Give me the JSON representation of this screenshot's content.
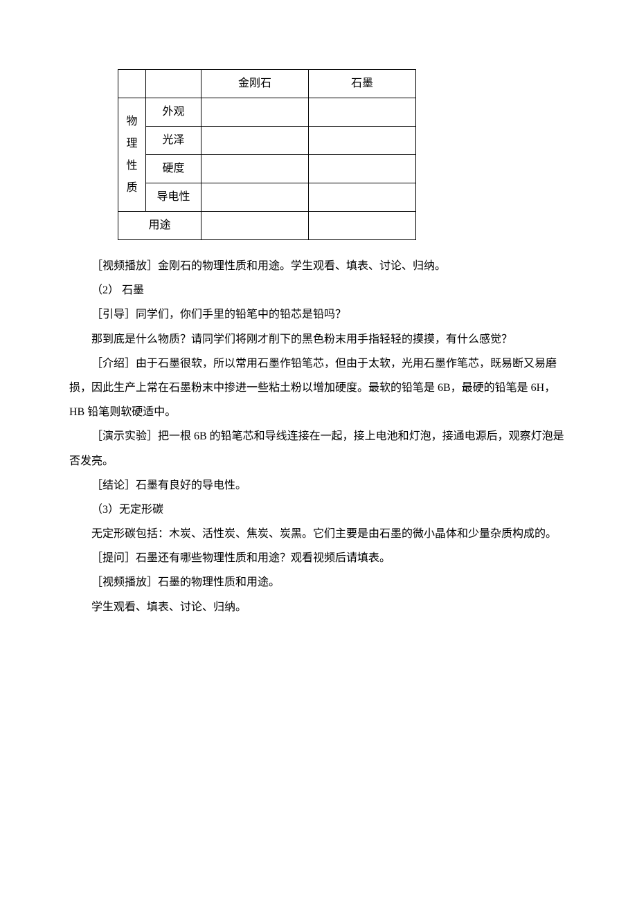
{
  "table": {
    "headers": {
      "diamond": "金刚石",
      "graphite": "石墨"
    },
    "rowGroup": "物理性质",
    "rows": {
      "appearance": "外观",
      "luster": "光泽",
      "hardness": "硬度",
      "conductivity": "导电性"
    },
    "use": "用途"
  },
  "paragraphs": {
    "p1": "［视频播放］金刚石的物理性质和用途。学生观看、填表、讨论、归纳。",
    "p2": "（2） 石墨",
    "p3": "［引导］同学们，你们手里的铅笔中的铅芯是铅吗？",
    "p4": "那到底是什么物质？请同学们将刚才削下的黑色粉末用手指轻轻的摸摸，有什么感觉？",
    "p5": "［介绍］由于石墨很软，所以常用石墨作铅笔芯，但由于太软，光用石墨作笔芯，既易断又易磨损，因此生产上常在石墨粉末中掺进一些粘土粉以增加硬度。最软的铅笔是 6B，最硬的铅笔是 6H，HB 铅笔则软硬适中。",
    "p6": "［演示实验］把一根 6B 的铅笔芯和导线连接在一起，接上电池和灯泡，接通电源后，观察灯泡是否发亮。",
    "p7": "［结论］石墨有良好的导电性。",
    "p8": "（3）无定形碳",
    "p9": "无定形碳包括：木炭、活性炭、焦炭、炭黑。它们主要是由石墨的微小晶体和少量杂质构成的。",
    "p10": "［提问］石墨还有哪些物理性质和用途？观看视频后请填表。",
    "p11": "［视频播放］石墨的物理性质和用途。",
    "p12": "学生观看、填表、讨论、归纳。"
  },
  "styles": {
    "background_color": "#ffffff",
    "text_color": "#000000",
    "border_color": "#000000",
    "font_family": "SimSun",
    "font_size": 16,
    "line_height": 2.2
  }
}
